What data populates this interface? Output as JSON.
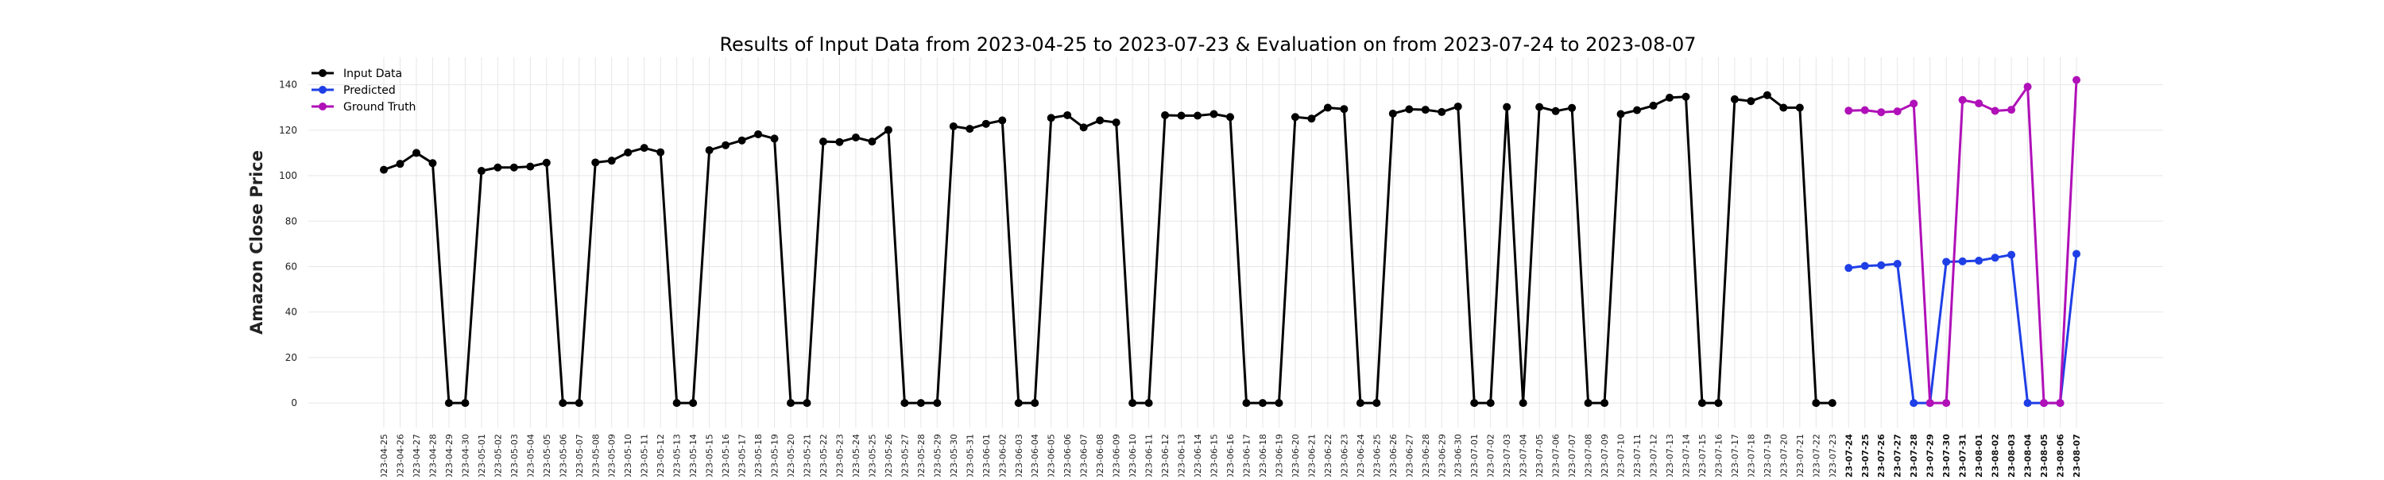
{
  "chart_data": {
    "type": "line",
    "title": "Results of Input Data from 2023-04-25 to 2023-07-23 & Evaluation on from 2023-07-24 to 2023-08-07",
    "xlabel": "",
    "ylabel": "Amazon Close Price",
    "ylim": [
      -8,
      150
    ],
    "yticks": [
      0,
      20,
      40,
      60,
      80,
      100,
      120,
      140
    ],
    "grid": true,
    "legend_position": "top-left",
    "input_dates": [
      "2023-04-25",
      "2023-04-26",
      "2023-04-27",
      "2023-04-28",
      "2023-04-29",
      "2023-04-30",
      "2023-05-01",
      "2023-05-02",
      "2023-05-03",
      "2023-05-04",
      "2023-05-05",
      "2023-05-06",
      "2023-05-07",
      "2023-05-08",
      "2023-05-09",
      "2023-05-10",
      "2023-05-11",
      "2023-05-12",
      "2023-05-13",
      "2023-05-14",
      "2023-05-15",
      "2023-05-16",
      "2023-05-17",
      "2023-05-18",
      "2023-05-19",
      "2023-05-20",
      "2023-05-21",
      "2023-05-22",
      "2023-05-23",
      "2023-05-24",
      "2023-05-25",
      "2023-05-26",
      "2023-05-27",
      "2023-05-28",
      "2023-05-29",
      "2023-05-30",
      "2023-05-31",
      "2023-06-01",
      "2023-06-02",
      "2023-06-03",
      "2023-06-04",
      "2023-06-05",
      "2023-06-06",
      "2023-06-07",
      "2023-06-08",
      "2023-06-09",
      "2023-06-10",
      "2023-06-11",
      "2023-06-12",
      "2023-06-13",
      "2023-06-14",
      "2023-06-15",
      "2023-06-16",
      "2023-06-17",
      "2023-06-18",
      "2023-06-19",
      "2023-06-20",
      "2023-06-21",
      "2023-06-22",
      "2023-06-23",
      "2023-06-24",
      "2023-06-25",
      "2023-06-26",
      "2023-06-27",
      "2023-06-28",
      "2023-06-29",
      "2023-06-30",
      "2023-07-01",
      "2023-07-02",
      "2023-07-03",
      "2023-07-04",
      "2023-07-05",
      "2023-07-06",
      "2023-07-07",
      "2023-07-08",
      "2023-07-09",
      "2023-07-10",
      "2023-07-11",
      "2023-07-12",
      "2023-07-13",
      "2023-07-14",
      "2023-07-15",
      "2023-07-16",
      "2023-07-17",
      "2023-07-18",
      "2023-07-19",
      "2023-07-20",
      "2023-07-21",
      "2023-07-22",
      "2023-07-23"
    ],
    "eval_dates": [
      "2023-07-24",
      "2023-07-25",
      "2023-07-26",
      "2023-07-27",
      "2023-07-28",
      "2023-07-29",
      "2023-07-30",
      "2023-07-31",
      "2023-08-01",
      "2023-08-02",
      "2023-08-03",
      "2023-08-04",
      "2023-08-05",
      "2023-08-06",
      "2023-08-07"
    ],
    "series": [
      {
        "name": "Input Data",
        "color": "#000000",
        "segment": "input",
        "values": [
          102.6,
          105.2,
          110.0,
          105.5,
          0,
          0,
          102.1,
          103.6,
          103.6,
          104.0,
          105.7,
          0,
          0,
          105.8,
          106.6,
          110.2,
          112.2,
          110.3,
          0,
          0,
          111.2,
          113.4,
          115.5,
          118.2,
          116.3,
          0,
          0,
          115.0,
          114.8,
          116.8,
          115.0,
          120.1,
          0,
          0,
          0,
          121.7,
          120.6,
          122.8,
          124.3,
          0,
          0,
          125.4,
          126.6,
          121.2,
          124.3,
          123.4,
          0,
          0,
          126.6,
          126.4,
          126.4,
          127.1,
          125.8,
          0,
          0,
          0,
          125.8,
          125.1,
          129.9,
          129.3,
          0,
          0,
          127.3,
          129.2,
          129.0,
          128.0,
          130.4,
          0,
          0,
          130.2,
          0,
          130.2,
          128.4,
          129.8,
          0,
          0,
          127.1,
          128.8,
          130.8,
          134.3,
          134.7,
          0,
          0,
          133.6,
          132.8,
          135.4,
          129.9,
          129.9,
          0,
          0
        ]
      },
      {
        "name": "Predicted",
        "color": "#1f3fe6",
        "segment": "eval",
        "values": [
          59.4,
          60.3,
          60.6,
          61.2,
          0,
          0,
          62.1,
          62.3,
          62.6,
          63.9,
          65.2,
          0,
          0,
          0,
          65.6
        ]
      },
      {
        "name": "Ground Truth",
        "color": "#b010b8",
        "segment": "eval",
        "values": [
          128.6,
          128.8,
          127.9,
          128.3,
          131.7,
          0,
          0,
          133.3,
          131.8,
          128.5,
          129.0,
          139.1,
          0,
          0,
          142.1
        ]
      }
    ]
  }
}
